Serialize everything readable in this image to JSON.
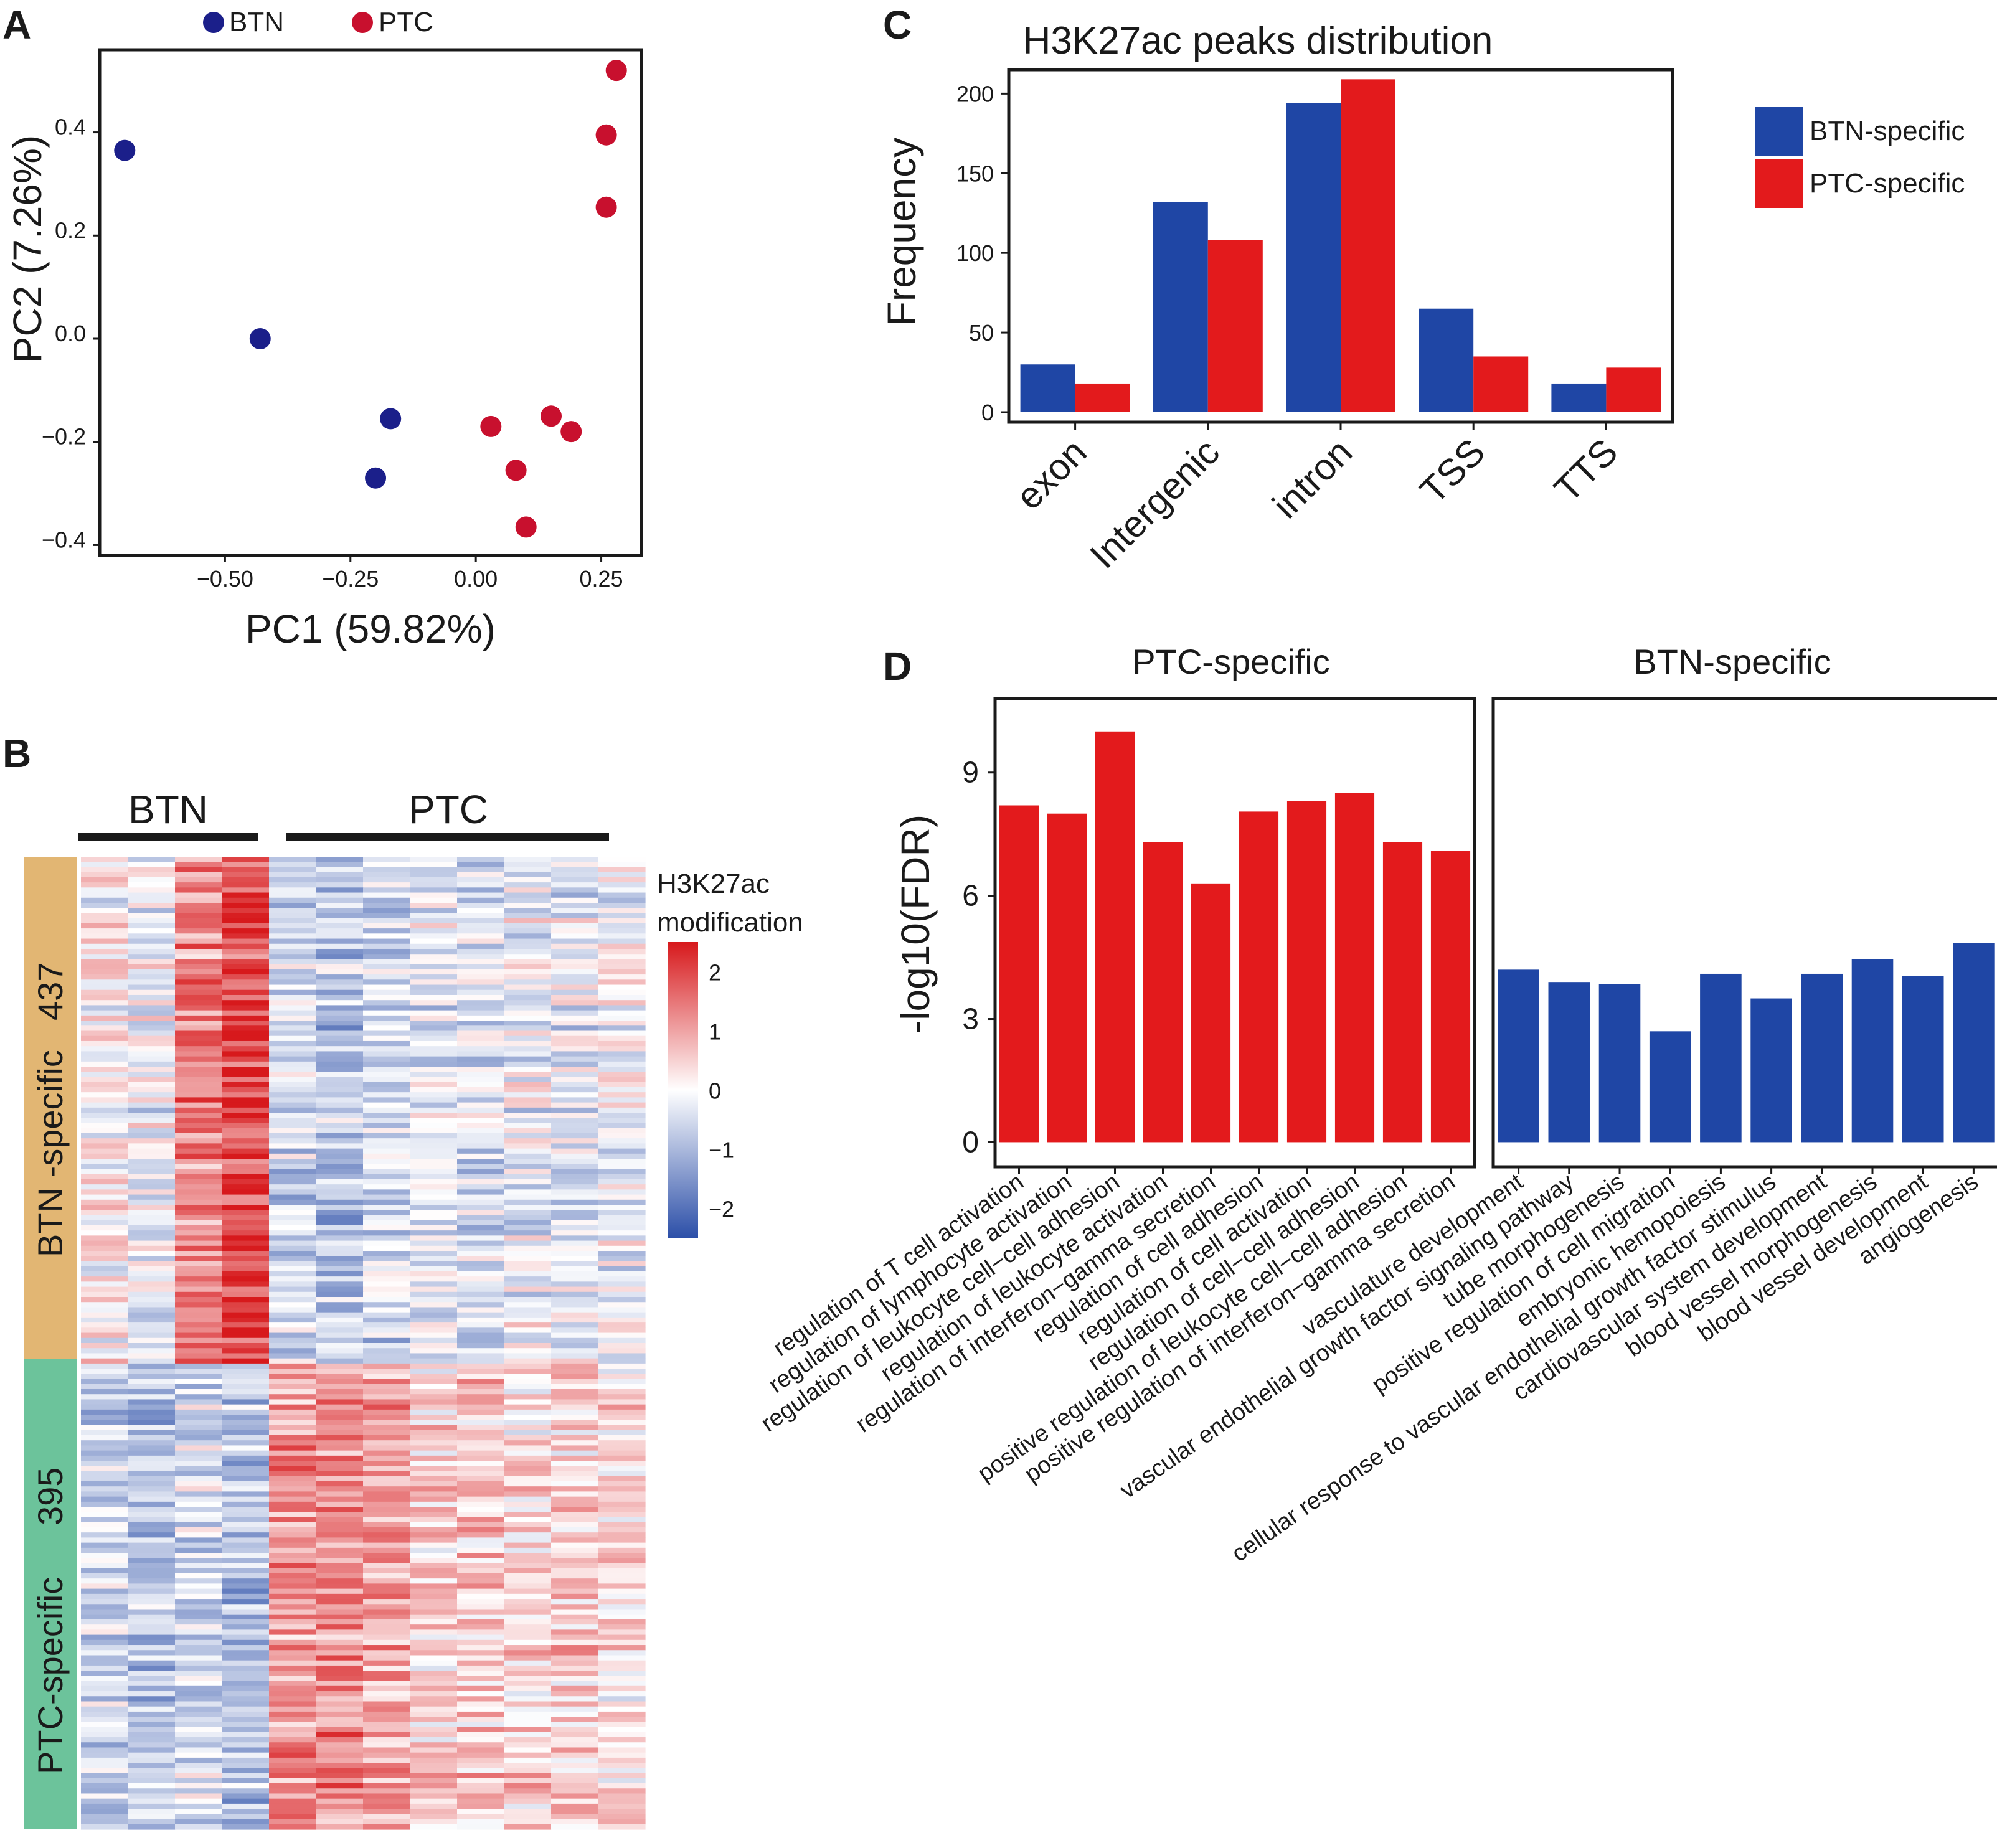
{
  "panels": {
    "A": "A",
    "B": "B",
    "C": "C",
    "D": "D"
  },
  "colors": {
    "btn": "#1f46a5",
    "ptc": "#e31a1c",
    "btn_dot": "#1b1f8a",
    "ptc_dot": "#c8102e"
  },
  "chart_data": [
    {
      "id": "A",
      "type": "scatter",
      "xlabel": "PC1 (59.82%)",
      "ylabel": "PC2 (7.26%)",
      "xlim": [
        -0.75,
        0.33
      ],
      "ylim": [
        -0.42,
        0.56
      ],
      "xticks": [
        -0.5,
        -0.25,
        0.0,
        0.25
      ],
      "xtick_labels": [
        "−0.50",
        "−0.25",
        "0.00",
        "0.25"
      ],
      "yticks": [
        0.4,
        0.2,
        0.0,
        -0.2,
        -0.4
      ],
      "ytick_labels": [
        "0.4",
        "0.2",
        "0.0",
        "−0.2",
        "−0.4"
      ],
      "legend": [
        "BTN",
        "PTC"
      ],
      "series": [
        {
          "name": "BTN",
          "points": [
            [
              -0.7,
              0.365
            ],
            [
              -0.43,
              0.0
            ],
            [
              -0.17,
              -0.155
            ],
            [
              -0.2,
              -0.27
            ]
          ]
        },
        {
          "name": "PTC",
          "points": [
            [
              0.28,
              0.52
            ],
            [
              0.26,
              0.395
            ],
            [
              0.26,
              0.255
            ],
            [
              0.15,
              -0.15
            ],
            [
              0.03,
              -0.17
            ],
            [
              0.19,
              -0.18
            ],
            [
              0.08,
              -0.255
            ],
            [
              0.1,
              -0.365
            ]
          ]
        }
      ]
    },
    {
      "id": "B",
      "type": "heatmap",
      "column_groups": [
        "BTN",
        "PTC"
      ],
      "row_groups": [
        {
          "name": "BTN -specific",
          "count": "437"
        },
        {
          "name": "PTC-specific",
          "count": "395"
        }
      ],
      "legend_title": [
        "H3K27ac",
        "modification"
      ],
      "color_scale": {
        "min": -2.5,
        "max": 2.5,
        "ticks": [
          2,
          1,
          0,
          -1,
          -2
        ],
        "tick_labels": [
          "2",
          "1",
          "0",
          "−1",
          "−2"
        ]
      }
    },
    {
      "id": "C",
      "type": "bar",
      "title": "H3K27ac peaks distribution",
      "ylabel": "Frequency",
      "categories": [
        "exon",
        "Intergenic",
        "intron",
        "TSS",
        "TTS"
      ],
      "series": [
        {
          "name": "BTN-specific",
          "values": [
            30,
            132,
            194,
            65,
            18
          ]
        },
        {
          "name": "PTC-specific",
          "values": [
            18,
            108,
            209,
            35,
            28
          ]
        }
      ],
      "ylim": [
        0,
        215
      ],
      "yticks": [
        0,
        50,
        100,
        150,
        200
      ],
      "ytick_labels": [
        "0",
        "50",
        "100",
        "150",
        "200"
      ]
    },
    {
      "id": "D",
      "type": "bar",
      "ylabel": "-log10(FDR)",
      "ylim": [
        -0.6,
        10.8
      ],
      "yticks": [
        0,
        3,
        6,
        9
      ],
      "ytick_labels": [
        "0",
        "3",
        "6",
        "9"
      ],
      "facets": [
        {
          "title": "PTC-specific",
          "categories": [
            "regulation of T cell activation",
            "regulation of lymphocyte activation",
            "regulation of leukocyte cell−cell adhesion",
            "regulation of leukocyte activation",
            "regulation of interferon−gamma secretion",
            "regulation of cell adhesion",
            "regulation of cell activation",
            "regulation of cell−cell adhesion",
            "positive regulation of leukocyte cell−cell adhesion",
            "positive regulation of interferon−gamma secretion"
          ],
          "values": [
            8.2,
            8.0,
            10.0,
            7.3,
            6.3,
            8.05,
            8.3,
            8.5,
            7.3,
            7.1
          ]
        },
        {
          "title": "BTN-specific",
          "categories": [
            "vasculature development",
            "vascular endothelial growth factor signaling pathway",
            "tube morphogenesis",
            "positive regulation of cell migration",
            "embryonic hemopoiesis",
            "cellular response to vascular endothelial growth factor stimulus",
            "cardiovascular system development",
            "blood vessel morphogenesis",
            "blood vessel development",
            "angiogenesis"
          ],
          "values": [
            4.2,
            3.9,
            3.85,
            2.7,
            4.1,
            3.5,
            4.1,
            4.45,
            4.05,
            4.85
          ]
        }
      ]
    }
  ]
}
